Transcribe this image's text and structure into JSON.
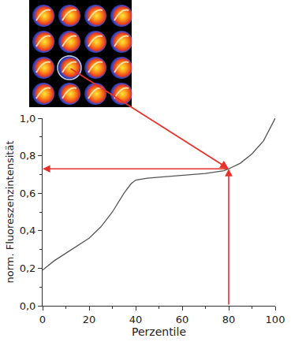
{
  "chart_data": {
    "type": "line",
    "x_label": "Perzentile",
    "y_label": "norm. Fluoreszenzintensität",
    "x": [
      0,
      5,
      10,
      15,
      20,
      25,
      30,
      35,
      38,
      40,
      45,
      50,
      60,
      70,
      78,
      80,
      85,
      90,
      95,
      100
    ],
    "values": [
      0.19,
      0.24,
      0.28,
      0.32,
      0.36,
      0.42,
      0.5,
      0.6,
      0.65,
      0.67,
      0.68,
      0.685,
      0.695,
      0.705,
      0.72,
      0.73,
      0.76,
      0.81,
      0.88,
      1.0
    ],
    "color": "#555555",
    "marked_point": {
      "x": 80,
      "y": 0.73
    },
    "xlim": [
      0,
      100
    ],
    "xticks": [
      0,
      20,
      40,
      60,
      80,
      100
    ],
    "ylim": [
      0,
      1
    ],
    "yticks": [
      {
        "value": 0,
        "label": "0,0"
      },
      {
        "value": 0.2,
        "label": "0,2"
      },
      {
        "value": 0.4,
        "label": "0,4"
      },
      {
        "value": 0.6,
        "label": "0,6"
      },
      {
        "value": 0.8,
        "label": "0,8"
      },
      {
        "value": 1,
        "label": "1,0"
      }
    ],
    "grid": false
  }
}
